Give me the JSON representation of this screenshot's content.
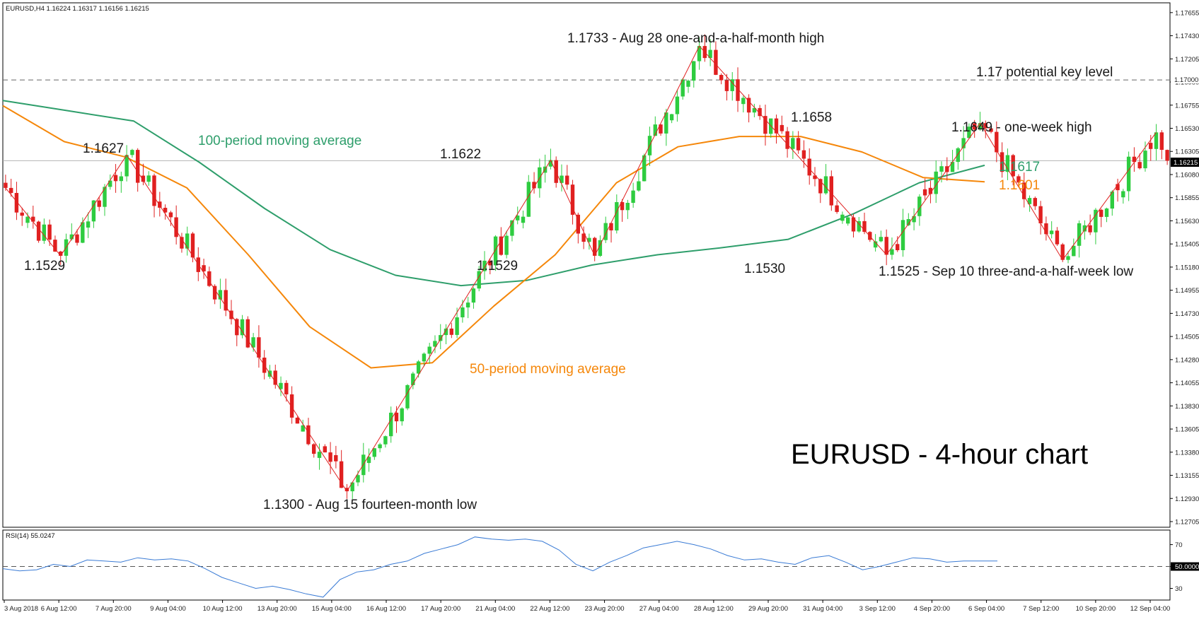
{
  "header": {
    "symbol_line": "EURUSD,H4  1.16224 1.16317 1.16156 1.16215",
    "rsi_line": "RSI(14) 55.0247"
  },
  "title": "EURUSD - 4-hour chart",
  "colors": {
    "bull": "#2ecc40",
    "bear": "#e02020",
    "ma100": "#2e9e6b",
    "ma50": "#f5870a",
    "rsi": "#3a7bd5",
    "zigzag": "#e02020",
    "grid": "#c8c8c8"
  },
  "chart_data": {
    "type": "candlestick",
    "timeframe": "H4",
    "ylim": [
      1.1265,
      1.1775
    ],
    "y_ticks": [
      "1.17655",
      "1.17430",
      "1.17205",
      "1.16980",
      "1.16755",
      "1.16530",
      "1.16305",
      "1.16080",
      "1.15855",
      "1.15630",
      "1.15405",
      "1.15180",
      "1.14955",
      "1.14730",
      "1.14505",
      "1.14280",
      "1.14055",
      "1.13830",
      "1.13605",
      "1.13380",
      "1.13155",
      "1.12930",
      "1.12705"
    ],
    "current_price_tag": "1.16215",
    "key_level_tag": "1.17000",
    "key_level": 1.17,
    "x_ticks": [
      "3 Aug 2018",
      "6 Aug 12:00",
      "7 Aug 20:00",
      "9 Aug 04:00",
      "10 Aug 12:00",
      "13 Aug 20:00",
      "15 Aug 04:00",
      "16 Aug 12:00",
      "17 Aug 20:00",
      "21 Aug 04:00",
      "22 Aug 12:00",
      "23 Aug 20:00",
      "27 Aug 04:00",
      "28 Aug 12:00",
      "29 Aug 20:00",
      "31 Aug 04:00",
      "3 Sep 12:00",
      "4 Sep 20:00",
      "6 Sep 04:00",
      "7 Sep 12:00",
      "10 Sep 20:00",
      "12 Sep 04:00"
    ],
    "zigzag": [
      {
        "i": 0,
        "price": 1.1595
      },
      {
        "i": 10,
        "price": 1.1529
      },
      {
        "i": 22,
        "price": 1.1627
      },
      {
        "i": 62,
        "price": 1.13
      },
      {
        "i": 99,
        "price": 1.1622
      },
      {
        "i": 107,
        "price": 1.1529
      },
      {
        "i": 126,
        "price": 1.1733
      },
      {
        "i": 160,
        "price": 1.153
      },
      {
        "i": 177,
        "price": 1.1658
      },
      {
        "i": 192,
        "price": 1.1525
      },
      {
        "i": 209,
        "price": 1.1649
      }
    ],
    "ma50": [
      1.1675,
      1.164,
      1.1625,
      1.1595,
      1.153,
      1.146,
      1.142,
      1.1425,
      1.148,
      1.153,
      1.16,
      1.1635,
      1.1645,
      1.1645,
      1.163,
      1.1605,
      1.1601
    ],
    "ma100": [
      1.168,
      1.167,
      1.166,
      1.162,
      1.1575,
      1.1535,
      1.151,
      1.15,
      1.1505,
      1.152,
      1.153,
      1.1537,
      1.1545,
      1.157,
      1.16,
      1.1617
    ],
    "rsi": {
      "ylim": [
        20,
        82
      ],
      "levels": [
        70,
        50,
        30
      ],
      "level_labels": [
        "70",
        "50.0000",
        "30"
      ],
      "values": [
        48,
        46,
        47,
        52,
        50,
        56,
        55,
        54,
        58,
        56,
        57,
        55,
        48,
        40,
        35,
        30,
        32,
        29,
        25,
        22,
        38,
        45,
        47,
        52,
        55,
        62,
        66,
        70,
        77,
        75,
        74,
        75,
        73,
        65,
        52,
        46,
        54,
        60,
        67,
        70,
        73,
        70,
        66,
        60,
        56,
        57,
        54,
        52,
        58,
        60,
        54,
        47,
        50,
        54,
        58,
        57,
        54,
        55,
        55,
        55
      ]
    },
    "annotations": [
      {
        "text": "1.1733 - Aug 28 one-and-a-half-month high",
        "i": 126,
        "price": 1.1733,
        "pos": "above"
      },
      {
        "text": "1.17 potential key level",
        "pos": "right-of-line"
      },
      {
        "text": "1.1658",
        "i": 177,
        "price": 1.1658,
        "pos": "above"
      },
      {
        "text": "1.1649 - one-week high",
        "i": 209,
        "price": 1.1649,
        "pos": "above"
      },
      {
        "text": "1.1627",
        "i": 22,
        "price": 1.1627,
        "pos": "above"
      },
      {
        "text": "1.1622",
        "i": 99,
        "price": 1.1622,
        "pos": "above"
      },
      {
        "text": "1.1529",
        "i": 10,
        "price": 1.1529,
        "pos": "below"
      },
      {
        "text": "1.1529",
        "i": 107,
        "price": 1.1529,
        "pos": "below"
      },
      {
        "text": "1.1530",
        "i": 160,
        "price": 1.153,
        "pos": "below"
      },
      {
        "text": "1.1525 - Sep 10 three-and-a-half-week low",
        "i": 192,
        "price": 1.1525,
        "pos": "below"
      },
      {
        "text": "1.1300 - Aug 15 fourteen-month low",
        "i": 62,
        "price": 1.13,
        "pos": "below"
      },
      {
        "text": "100-period moving average",
        "color": "ma100"
      },
      {
        "text": "50-period moving average",
        "color": "ma50"
      },
      {
        "text": "1.1617",
        "color": "ma100"
      },
      {
        "text": "1.1601",
        "color": "ma50"
      }
    ]
  }
}
